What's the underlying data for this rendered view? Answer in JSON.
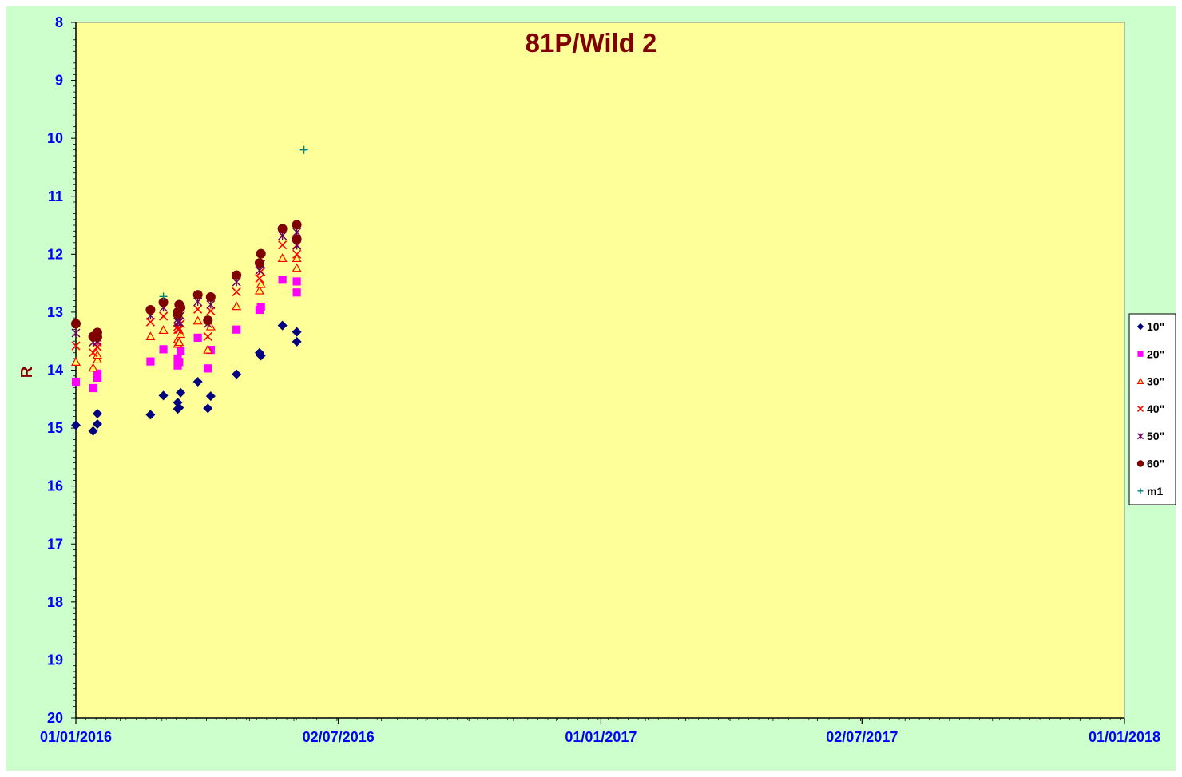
{
  "chart_data": {
    "type": "scatter",
    "title": "81P/Wild 2",
    "xlabel": "",
    "ylabel": "R",
    "ylim": [
      20,
      8
    ],
    "y_inverted": true,
    "y_ticks": [
      "8",
      "9",
      "10",
      "11",
      "12",
      "13",
      "14",
      "15",
      "16",
      "17",
      "18",
      "19",
      "20"
    ],
    "x_range": [
      "2016-01-01",
      "2018-01-01"
    ],
    "x_ticks": [
      {
        "date": "2016-01-01",
        "label": "01/01/2016"
      },
      {
        "date": "2016-07-02",
        "label": "02/07/2016"
      },
      {
        "date": "2017-01-01",
        "label": "01/01/2017"
      },
      {
        "date": "2017-07-02",
        "label": "02/07/2017"
      },
      {
        "date": "2018-01-01",
        "label": "01/01/2018"
      }
    ],
    "legend_position": "right",
    "plot_bg": "#ffff99",
    "page_bg": "#ccffcc",
    "series": [
      {
        "name": "10\"",
        "marker": "diamond",
        "color": "#000080",
        "points": [
          [
            "2016-01-01",
            14.95
          ],
          [
            "2016-01-13",
            15.05
          ],
          [
            "2016-01-16",
            14.93
          ],
          [
            "2016-01-16",
            14.75
          ],
          [
            "2016-02-22",
            14.77
          ],
          [
            "2016-03-02",
            14.44
          ],
          [
            "2016-03-12",
            14.56
          ],
          [
            "2016-03-12",
            14.67
          ],
          [
            "2016-03-13",
            14.65
          ],
          [
            "2016-03-14",
            14.39
          ],
          [
            "2016-03-26",
            14.2
          ],
          [
            "2016-04-02",
            14.66
          ],
          [
            "2016-04-04",
            14.45
          ],
          [
            "2016-04-22",
            14.07
          ],
          [
            "2016-05-08",
            13.7
          ],
          [
            "2016-05-09",
            13.75
          ],
          [
            "2016-05-24",
            13.23
          ],
          [
            "2016-06-03",
            13.34
          ],
          [
            "2016-06-03",
            13.51
          ]
        ]
      },
      {
        "name": "20\"",
        "marker": "square",
        "color": "#ff00ff",
        "points": [
          [
            "2016-01-01",
            14.2
          ],
          [
            "2016-01-13",
            14.31
          ],
          [
            "2016-01-16",
            14.13
          ],
          [
            "2016-01-16",
            14.06
          ],
          [
            "2016-02-22",
            13.85
          ],
          [
            "2016-03-02",
            13.64
          ],
          [
            "2016-03-12",
            13.8
          ],
          [
            "2016-03-12",
            13.92
          ],
          [
            "2016-03-13",
            13.86
          ],
          [
            "2016-03-14",
            13.67
          ],
          [
            "2016-03-26",
            13.44
          ],
          [
            "2016-04-02",
            13.97
          ],
          [
            "2016-04-04",
            13.65
          ],
          [
            "2016-04-22",
            13.3
          ],
          [
            "2016-05-08",
            12.96
          ],
          [
            "2016-05-09",
            12.91
          ],
          [
            "2016-05-24",
            12.44
          ],
          [
            "2016-06-03",
            12.47
          ],
          [
            "2016-06-03",
            12.66
          ]
        ]
      },
      {
        "name": "30\"",
        "marker": "triangle",
        "color": "#ff0000",
        "points": [
          [
            "2016-01-01",
            13.86
          ],
          [
            "2016-01-13",
            13.96
          ],
          [
            "2016-01-16",
            13.82
          ],
          [
            "2016-01-16",
            13.74
          ],
          [
            "2016-02-22",
            13.42
          ],
          [
            "2016-03-02",
            13.31
          ],
          [
            "2016-03-12",
            13.47
          ],
          [
            "2016-03-12",
            13.55
          ],
          [
            "2016-03-13",
            13.52
          ],
          [
            "2016-03-14",
            13.38
          ],
          [
            "2016-03-26",
            13.15
          ],
          [
            "2016-04-02",
            13.65
          ],
          [
            "2016-04-04",
            13.25
          ],
          [
            "2016-04-22",
            12.9
          ],
          [
            "2016-05-08",
            12.63
          ],
          [
            "2016-05-09",
            12.52
          ],
          [
            "2016-05-24",
            12.07
          ],
          [
            "2016-06-03",
            12.07
          ],
          [
            "2016-06-03",
            12.24
          ]
        ]
      },
      {
        "name": "40\"",
        "marker": "x",
        "color": "#ff0000",
        "points": [
          [
            "2016-01-01",
            13.58
          ],
          [
            "2016-01-13",
            13.7
          ],
          [
            "2016-01-16",
            13.6
          ],
          [
            "2016-01-16",
            13.52
          ],
          [
            "2016-02-22",
            13.17
          ],
          [
            "2016-03-02",
            13.07
          ],
          [
            "2016-03-12",
            13.25
          ],
          [
            "2016-03-12",
            13.3
          ],
          [
            "2016-03-13",
            13.3
          ],
          [
            "2016-03-14",
            13.2
          ],
          [
            "2016-03-26",
            12.95
          ],
          [
            "2016-04-02",
            13.42
          ],
          [
            "2016-04-04",
            12.98
          ],
          [
            "2016-04-22",
            12.65
          ],
          [
            "2016-05-08",
            12.42
          ],
          [
            "2016-05-09",
            12.3
          ],
          [
            "2016-05-24",
            11.84
          ],
          [
            "2016-06-03",
            11.84
          ],
          [
            "2016-06-03",
            12.0
          ]
        ]
      },
      {
        "name": "50\"",
        "marker": "star",
        "color": "#660066",
        "points": [
          [
            "2016-01-01",
            13.36
          ],
          [
            "2016-01-13",
            13.52
          ],
          [
            "2016-01-16",
            13.5
          ],
          [
            "2016-01-16",
            13.44
          ],
          [
            "2016-02-22",
            13.06
          ],
          [
            "2016-03-02",
            12.92
          ],
          [
            "2016-03-12",
            13.12
          ],
          [
            "2016-03-12",
            13.17
          ],
          [
            "2016-03-13",
            13.17
          ],
          [
            "2016-03-14",
            13.06
          ],
          [
            "2016-03-26",
            12.82
          ],
          [
            "2016-04-02",
            13.2
          ],
          [
            "2016-04-04",
            12.87
          ],
          [
            "2016-04-22",
            12.48
          ],
          [
            "2016-05-08",
            12.28
          ],
          [
            "2016-05-09",
            12.17
          ],
          [
            "2016-05-24",
            11.68
          ],
          [
            "2016-06-03",
            11.62
          ],
          [
            "2016-06-03",
            11.85
          ]
        ]
      },
      {
        "name": "60\"",
        "marker": "circle",
        "color": "#800000",
        "points": [
          [
            "2016-01-01",
            13.2
          ],
          [
            "2016-01-13",
            13.42
          ],
          [
            "2016-01-16",
            13.43
          ],
          [
            "2016-01-16",
            13.35
          ],
          [
            "2016-02-22",
            12.96
          ],
          [
            "2016-03-02",
            12.83
          ],
          [
            "2016-03-12",
            13.0
          ],
          [
            "2016-03-12",
            13.04
          ],
          [
            "2016-03-13",
            12.87
          ],
          [
            "2016-03-14",
            12.92
          ],
          [
            "2016-03-26",
            12.7
          ],
          [
            "2016-04-02",
            13.14
          ],
          [
            "2016-04-04",
            12.74
          ],
          [
            "2016-04-22",
            12.36
          ],
          [
            "2016-05-08",
            12.15
          ],
          [
            "2016-05-09",
            11.99
          ],
          [
            "2016-05-24",
            11.56
          ],
          [
            "2016-06-03",
            11.49
          ],
          [
            "2016-06-03",
            11.74
          ]
        ]
      },
      {
        "name": "m1",
        "marker": "plus",
        "color": "#008080",
        "points": [
          [
            "2016-03-02",
            12.73
          ],
          [
            "2016-06-08",
            10.2
          ]
        ]
      }
    ]
  }
}
